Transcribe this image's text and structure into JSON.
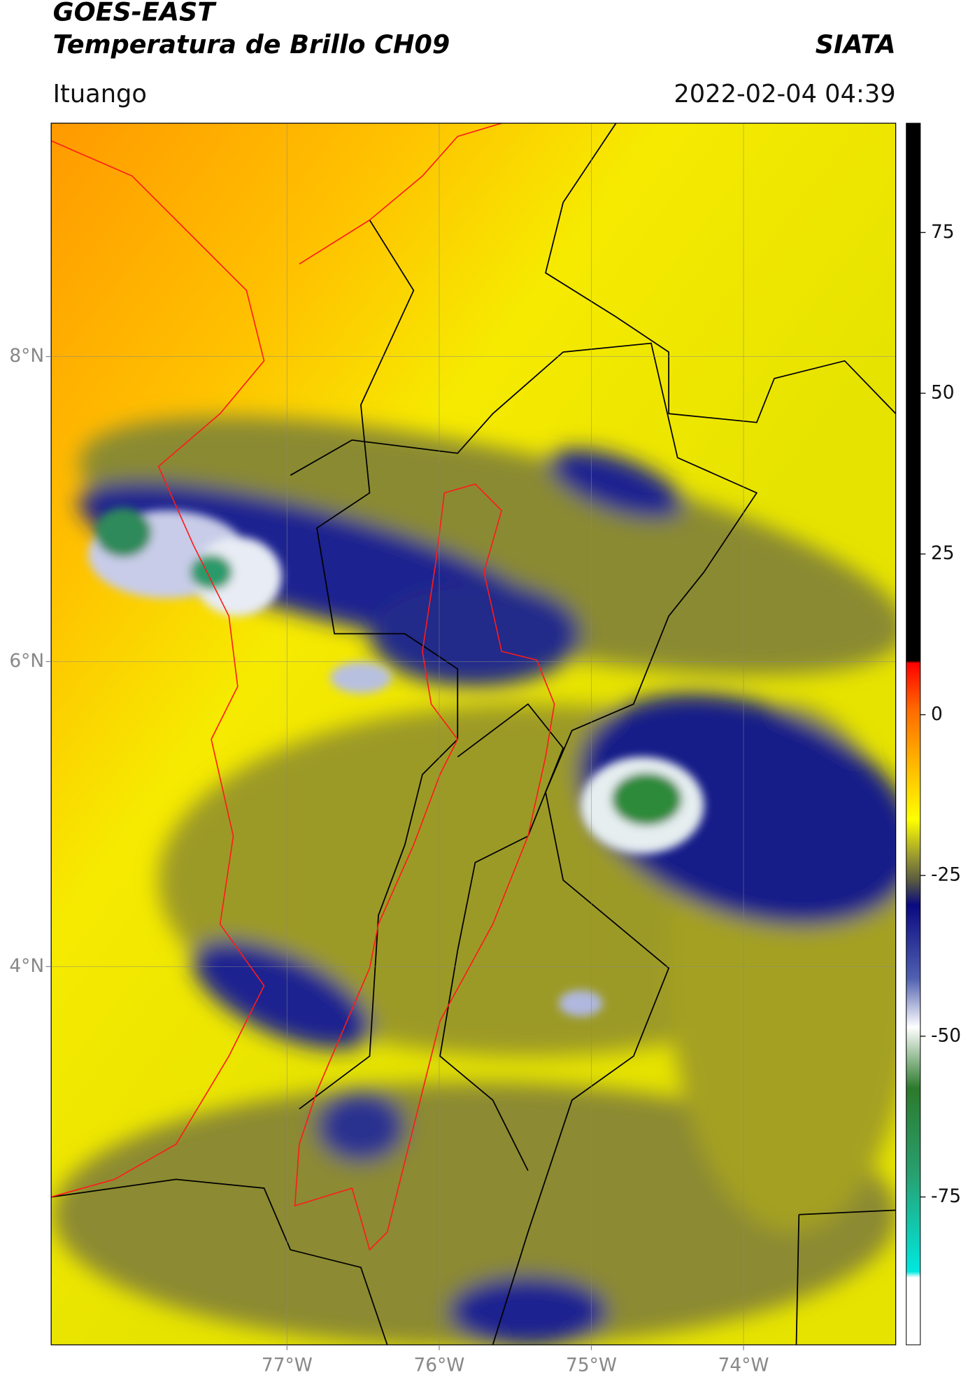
{
  "header": {
    "title": "GOES-EAST",
    "subtitle": "Temperatura de Brillo CH09",
    "org": "SIATA",
    "region": "Ituango",
    "datetime": "2022-02-04 04:39"
  },
  "map": {
    "lon_range": [
      -78.55,
      -73.0
    ],
    "lat_range": [
      1.52,
      9.53
    ],
    "lon_ticks": [
      {
        "value": -77,
        "label": "77°W"
      },
      {
        "value": -76,
        "label": "76°W"
      },
      {
        "value": -75,
        "label": "75°W"
      },
      {
        "value": -74,
        "label": "74°W"
      }
    ],
    "lat_ticks": [
      {
        "value": 8,
        "label": "8°N"
      },
      {
        "value": 6,
        "label": "6°N"
      },
      {
        "value": 4,
        "label": "4°N"
      }
    ]
  },
  "colorbar": {
    "range": [
      -98,
      92
    ],
    "ticks": [
      75,
      50,
      25,
      0,
      -25,
      -50,
      -75
    ]
  }
}
